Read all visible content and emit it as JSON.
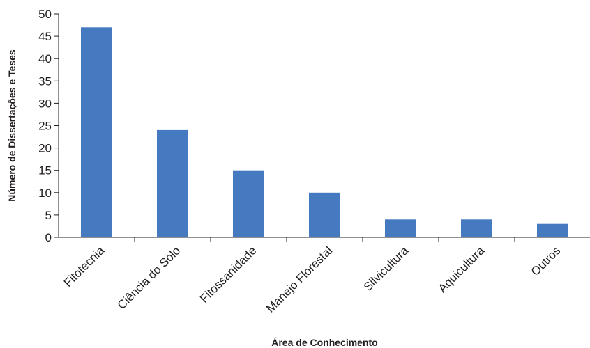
{
  "chart_data": {
    "type": "bar",
    "title": "",
    "xlabel": "Área de Conhecimento",
    "ylabel": "Número de Dissertações e Teses",
    "categories": [
      "Fitotecnia",
      "Ciência do Solo",
      "Fitossanidade",
      "Manejo Florestal",
      "Silvicultura",
      "Aquicultura",
      "Outros"
    ],
    "values": [
      47,
      24,
      15,
      10,
      4,
      4,
      3
    ],
    "ylim": [
      0,
      50
    ],
    "yticks": [
      "0",
      "5",
      "10",
      "15",
      "20",
      "25",
      "30",
      "35",
      "40",
      "45",
      "50"
    ],
    "grid": false,
    "legend": "none",
    "bar_color": "#4579c0",
    "axis_color": "#231f20"
  }
}
